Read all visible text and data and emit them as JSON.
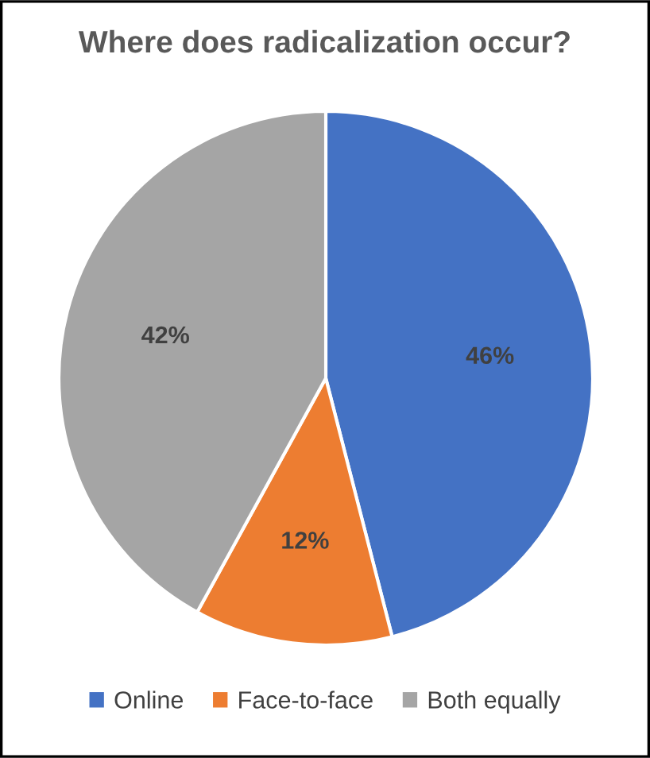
{
  "chart_data": {
    "type": "pie",
    "title": "Where does radicalization occur?",
    "categories": [
      "Online",
      "Face-to-face",
      "Both equally"
    ],
    "values": [
      46,
      12,
      42
    ],
    "colors": [
      "#4472c4",
      "#ed7d31",
      "#a5a5a5"
    ],
    "value_labels": [
      "46%",
      "12%",
      "42%"
    ],
    "legend": "bottom"
  }
}
